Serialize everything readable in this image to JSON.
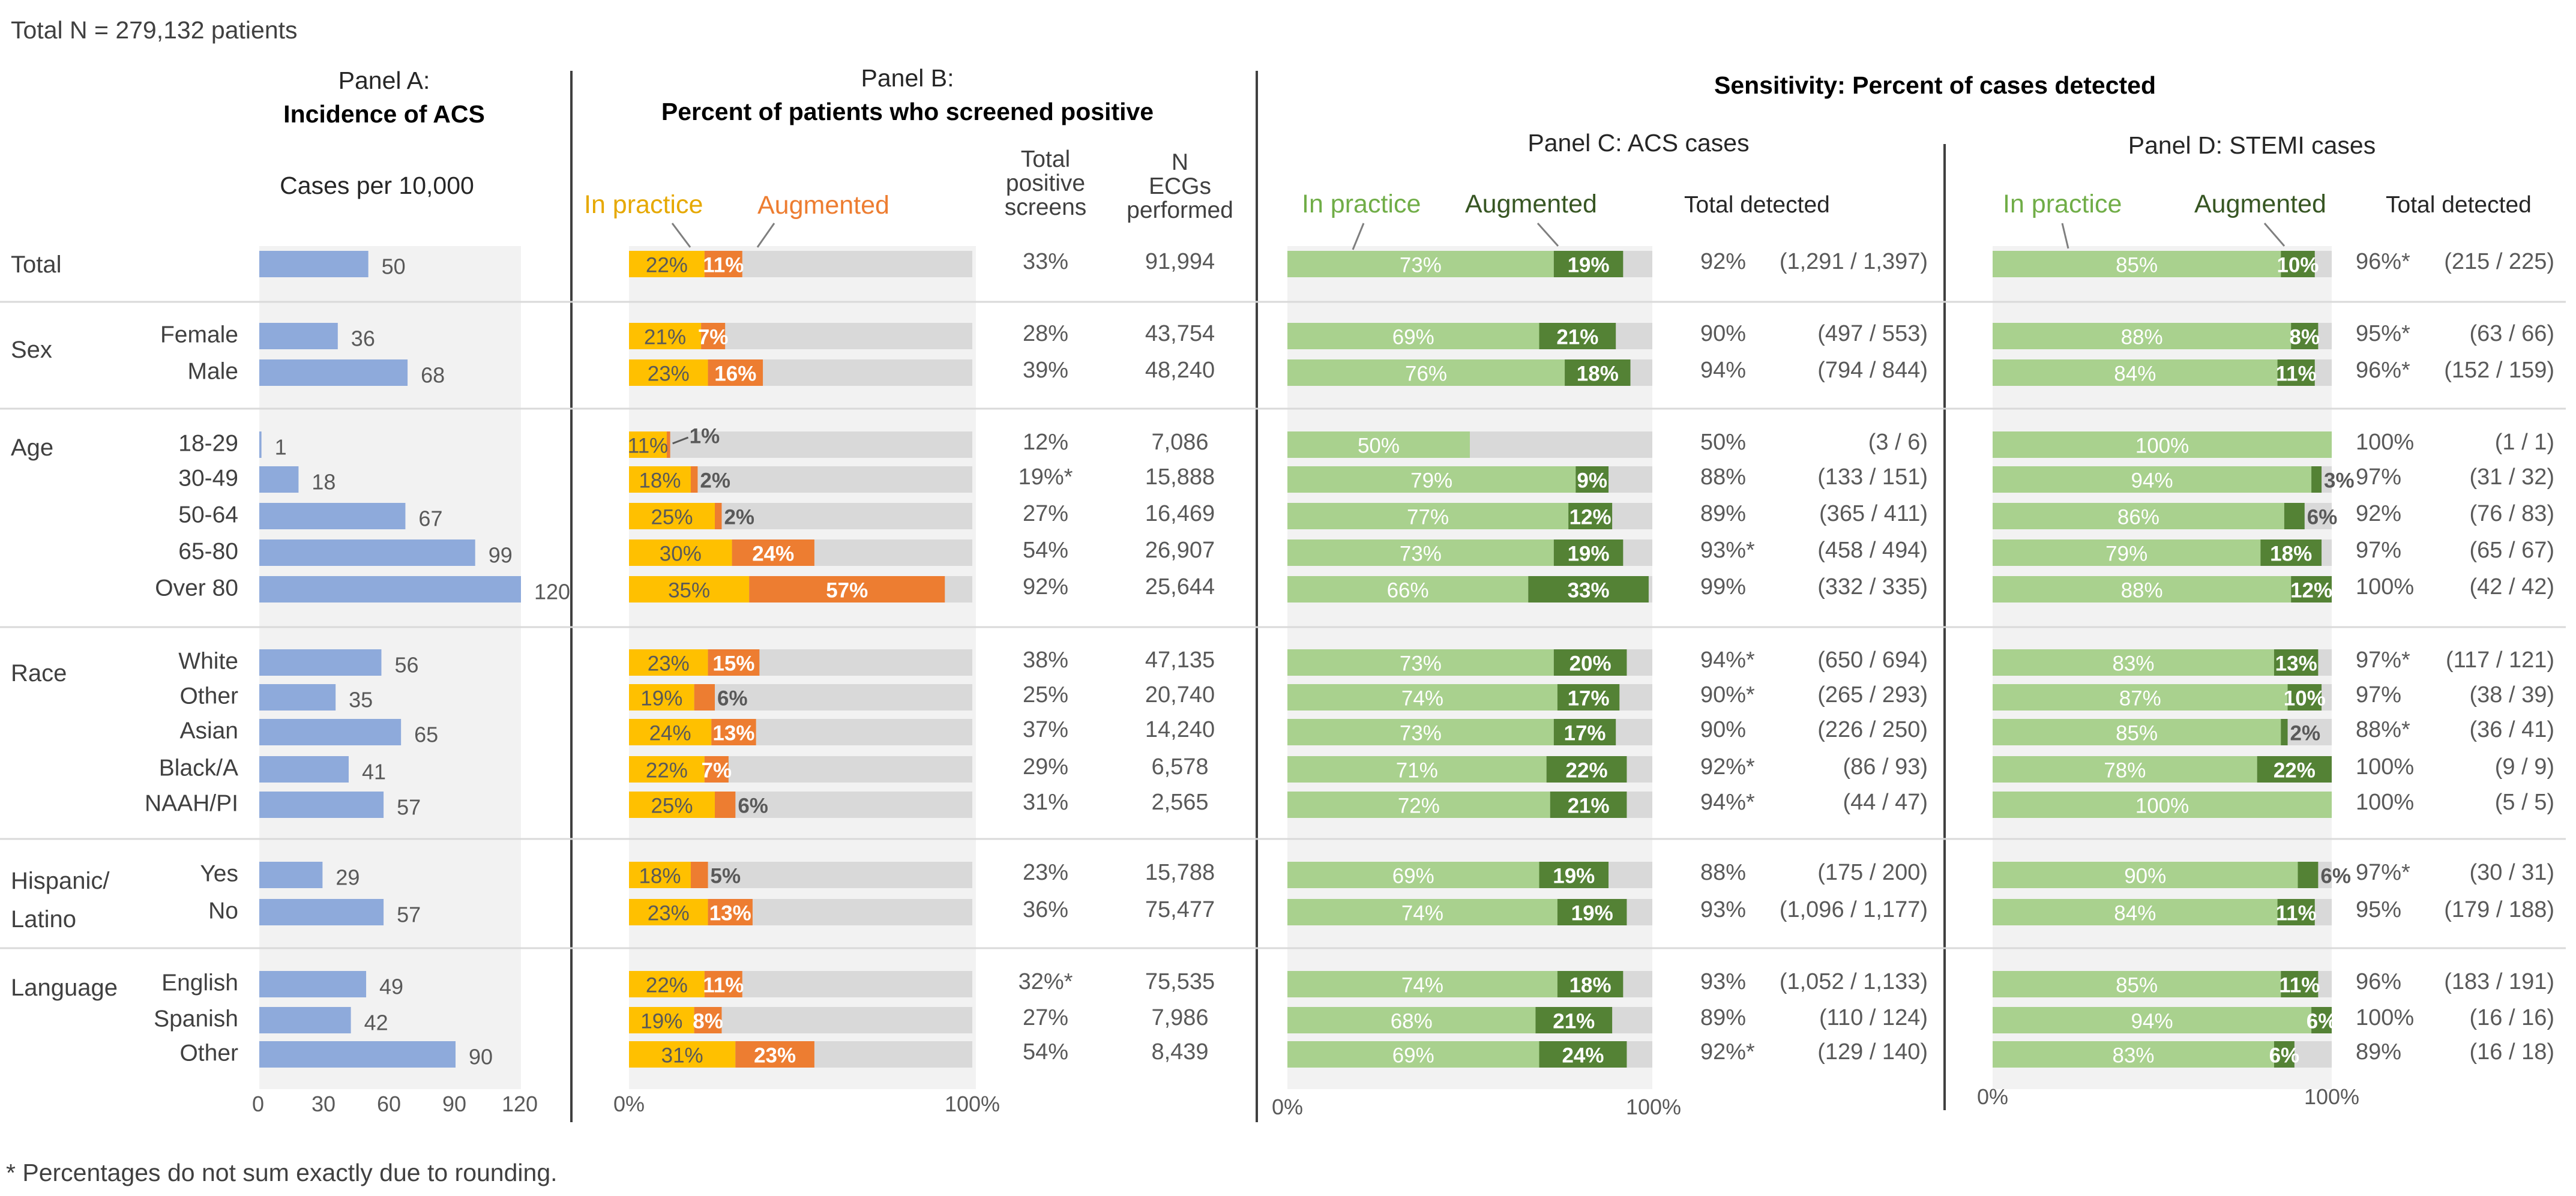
{
  "header": {
    "total_n": "Total N = 279,132 patients",
    "footnote": "* Percentages do not sum exactly due to rounding."
  },
  "panels": {
    "a_line1": "Panel A:",
    "a_line2": "Incidence of ACS",
    "a_sub": "Cases per 10,000",
    "b_line1": "Panel B:",
    "b_line2": "Percent of patients who screened positive",
    "b_col1": [
      "Total",
      "positive",
      "screens"
    ],
    "b_col2": [
      "N",
      "ECGs",
      "performed"
    ],
    "sens_title": "Sensitivity: Percent of cases detected",
    "c_title": "Panel C: ACS cases",
    "d_title": "Panel D: STEMI cases",
    "legend_practice": "In practice",
    "legend_augmented": "Augmented",
    "total_detected": "Total detected"
  },
  "axes": {
    "a_ticks": [
      "0",
      "30",
      "60",
      "90",
      "120"
    ],
    "pct_left": "0%",
    "pct_right": "100%"
  },
  "colors": {
    "incidence": "#8eaadb",
    "practice_b": "#ffc000",
    "augmented_b": "#ed7d31",
    "practice_cd": "#a9d18e",
    "augmented_cd": "#548235",
    "remainder": "#d9d9d9",
    "panel_bg": "#f2f2f2"
  },
  "chart_data": {
    "type": "bar",
    "title": "Sensitivity: Percent of cases detected",
    "panels": {
      "A": {
        "title": "Incidence of ACS",
        "xlabel": "Cases per 10,000",
        "xlim": [
          0,
          120
        ]
      },
      "B": {
        "title": "Percent of patients who screened positive",
        "series": [
          "In practice",
          "Augmented"
        ],
        "xlim": [
          0,
          100
        ]
      },
      "C": {
        "title": "Panel C: ACS cases",
        "series": [
          "In practice",
          "Augmented"
        ],
        "xlim": [
          0,
          100
        ]
      },
      "D": {
        "title": "Panel D: STEMI cases",
        "series": [
          "In practice",
          "Augmented"
        ],
        "xlim": [
          0,
          100
        ]
      }
    },
    "groups": [
      {
        "name": "Total",
        "rows": [
          {
            "label": "",
            "inc": 50,
            "b": [
              22,
              11
            ],
            "b_lab": [
              "22%",
              "11%"
            ],
            "b_out": "",
            "b_total": "33%",
            "n_ecg": "91,994",
            "c": [
              73,
              19
            ],
            "c_lab": [
              "73%",
              "19%"
            ],
            "c_out": "",
            "c_pct": "92%",
            "c_frac": "(1,291 / 1,397)",
            "d": [
              85,
              10
            ],
            "d_lab": [
              "85%",
              "10%"
            ],
            "d_out": "",
            "d_pct": "96%*",
            "d_frac": "(215 / 225)"
          }
        ]
      },
      {
        "name": "Sex",
        "rows": [
          {
            "label": "Female",
            "inc": 36,
            "b": [
              21,
              7
            ],
            "b_lab": [
              "21%",
              "7%"
            ],
            "b_out": "",
            "b_total": "28%",
            "n_ecg": "43,754",
            "c": [
              69,
              21
            ],
            "c_lab": [
              "69%",
              "21%"
            ],
            "c_out": "",
            "c_pct": "90%",
            "c_frac": "(497 / 553)",
            "d": [
              88,
              8
            ],
            "d_lab": [
              "88%",
              "8%"
            ],
            "d_out": "",
            "d_pct": "95%*",
            "d_frac": "(63 / 66)"
          },
          {
            "label": "Male",
            "inc": 68,
            "b": [
              23,
              16
            ],
            "b_lab": [
              "23%",
              "16%"
            ],
            "b_out": "",
            "b_total": "39%",
            "n_ecg": "48,240",
            "c": [
              76,
              18
            ],
            "c_lab": [
              "76%",
              "18%"
            ],
            "c_out": "",
            "c_pct": "94%",
            "c_frac": "(794 / 844)",
            "d": [
              84,
              11
            ],
            "d_lab": [
              "84%",
              "11%"
            ],
            "d_out": "",
            "d_pct": "96%*",
            "d_frac": "(152 / 159)"
          }
        ]
      },
      {
        "name": "Age",
        "rows": [
          {
            "label": "18-29",
            "inc": 1,
            "b": [
              11,
              1
            ],
            "b_lab": [
              "11%",
              ""
            ],
            "b_out": "1%",
            "b_total": "12%",
            "n_ecg": "7,086",
            "c": [
              50,
              0
            ],
            "c_lab": [
              "50%",
              ""
            ],
            "c_out": "",
            "c_pct": "50%",
            "c_frac": "(3 / 6)",
            "d": [
              100,
              0
            ],
            "d_lab": [
              "100%",
              ""
            ],
            "d_out": "",
            "d_pct": "100%",
            "d_frac": "(1 / 1)"
          },
          {
            "label": "30-49",
            "inc": 18,
            "b": [
              18,
              2
            ],
            "b_lab": [
              "18%",
              ""
            ],
            "b_out": "2%",
            "b_total": "19%*",
            "n_ecg": "15,888",
            "c": [
              79,
              9
            ],
            "c_lab": [
              "79%",
              "9%"
            ],
            "c_out": "",
            "c_pct": "88%",
            "c_frac": "(133 / 151)",
            "d": [
              94,
              3
            ],
            "d_lab": [
              "94%",
              ""
            ],
            "d_out": "3%",
            "d_pct": "97%",
            "d_frac": "(31 / 32)"
          },
          {
            "label": "50-64",
            "inc": 67,
            "b": [
              25,
              2
            ],
            "b_lab": [
              "25%",
              ""
            ],
            "b_out": "2%",
            "b_total": "27%",
            "n_ecg": "16,469",
            "c": [
              77,
              12
            ],
            "c_lab": [
              "77%",
              "12%"
            ],
            "c_out": "",
            "c_pct": "89%",
            "c_frac": "(365 / 411)",
            "d": [
              86,
              6
            ],
            "d_lab": [
              "86%",
              ""
            ],
            "d_out": "6%",
            "d_pct": "92%",
            "d_frac": "(76 / 83)"
          },
          {
            "label": "65-80",
            "inc": 99,
            "b": [
              30,
              24
            ],
            "b_lab": [
              "30%",
              "24%"
            ],
            "b_out": "",
            "b_total": "54%",
            "n_ecg": "26,907",
            "c": [
              73,
              19
            ],
            "c_lab": [
              "73%",
              "19%"
            ],
            "c_out": "",
            "c_pct": "93%*",
            "c_frac": "(458 / 494)",
            "d": [
              79,
              18
            ],
            "d_lab": [
              "79%",
              "18%"
            ],
            "d_out": "",
            "d_pct": "97%",
            "d_frac": "(65 / 67)"
          },
          {
            "label": "Over 80",
            "inc": 120,
            "b": [
              35,
              57
            ],
            "b_lab": [
              "35%",
              "57%"
            ],
            "b_out": "",
            "b_total": "92%",
            "n_ecg": "25,644",
            "c": [
              66,
              33
            ],
            "c_lab": [
              "66%",
              "33%"
            ],
            "c_out": "",
            "c_pct": "99%",
            "c_frac": "(332 / 335)",
            "d": [
              88,
              12
            ],
            "d_lab": [
              "88%",
              "12%"
            ],
            "d_out": "",
            "d_pct": "100%",
            "d_frac": "(42 / 42)"
          }
        ]
      },
      {
        "name": "Race",
        "rows": [
          {
            "label": "White",
            "inc": 56,
            "b": [
              23,
              15
            ],
            "b_lab": [
              "23%",
              "15%"
            ],
            "b_out": "",
            "b_total": "38%",
            "n_ecg": "47,135",
            "c": [
              73,
              20
            ],
            "c_lab": [
              "73%",
              "20%"
            ],
            "c_out": "",
            "c_pct": "94%*",
            "c_frac": "(650 / 694)",
            "d": [
              83,
              13
            ],
            "d_lab": [
              "83%",
              "13%"
            ],
            "d_out": "",
            "d_pct": "97%*",
            "d_frac": "(117 / 121)"
          },
          {
            "label": "Other",
            "inc": 35,
            "b": [
              19,
              6
            ],
            "b_lab": [
              "19%",
              ""
            ],
            "b_out": "6%",
            "b_total": "25%",
            "n_ecg": "20,740",
            "c": [
              74,
              17
            ],
            "c_lab": [
              "74%",
              "17%"
            ],
            "c_out": "",
            "c_pct": "90%*",
            "c_frac": "(265 / 293)",
            "d": [
              87,
              10
            ],
            "d_lab": [
              "87%",
              "10%"
            ],
            "d_out": "",
            "d_pct": "97%",
            "d_frac": "(38 / 39)"
          },
          {
            "label": "Asian",
            "inc": 65,
            "b": [
              24,
              13
            ],
            "b_lab": [
              "24%",
              "13%"
            ],
            "b_out": "",
            "b_total": "37%",
            "n_ecg": "14,240",
            "c": [
              73,
              17
            ],
            "c_lab": [
              "73%",
              "17%"
            ],
            "c_out": "",
            "c_pct": "90%",
            "c_frac": "(226 / 250)",
            "d": [
              85,
              2
            ],
            "d_lab": [
              "85%",
              ""
            ],
            "d_out": "2%",
            "d_pct": "88%*",
            "d_frac": "(36 / 41)"
          },
          {
            "label": "Black/A",
            "inc": 41,
            "b": [
              22,
              7
            ],
            "b_lab": [
              "22%",
              "7%"
            ],
            "b_out": "",
            "b_total": "29%",
            "n_ecg": "6,578",
            "c": [
              71,
              22
            ],
            "c_lab": [
              "71%",
              "22%"
            ],
            "c_out": "",
            "c_pct": "92%*",
            "c_frac": "(86 / 93)",
            "d": [
              78,
              22
            ],
            "d_lab": [
              "78%",
              "22%"
            ],
            "d_out": "",
            "d_pct": "100%",
            "d_frac": "(9 / 9)"
          },
          {
            "label": "NAAH/PI",
            "inc": 57,
            "b": [
              25,
              6
            ],
            "b_lab": [
              "25%",
              ""
            ],
            "b_out": "6%",
            "b_total": "31%",
            "n_ecg": "2,565",
            "c": [
              72,
              21
            ],
            "c_lab": [
              "72%",
              "21%"
            ],
            "c_out": "",
            "c_pct": "94%*",
            "c_frac": "(44 / 47)",
            "d": [
              100,
              0
            ],
            "d_lab": [
              "100%",
              ""
            ],
            "d_out": "",
            "d_pct": "100%",
            "d_frac": "(5 / 5)"
          }
        ]
      },
      {
        "name": "Hispanic/ Latino",
        "rows": [
          {
            "label": "Yes",
            "inc": 29,
            "b": [
              18,
              5
            ],
            "b_lab": [
              "18%",
              ""
            ],
            "b_out": "5%",
            "b_total": "23%",
            "n_ecg": "15,788",
            "c": [
              69,
              19
            ],
            "c_lab": [
              "69%",
              "19%"
            ],
            "c_out": "",
            "c_pct": "88%",
            "c_frac": "(175 / 200)",
            "d": [
              90,
              6
            ],
            "d_lab": [
              "90%",
              ""
            ],
            "d_out": "6%",
            "d_pct": "97%*",
            "d_frac": "(30 / 31)"
          },
          {
            "label": "No",
            "inc": 57,
            "b": [
              23,
              13
            ],
            "b_lab": [
              "23%",
              "13%"
            ],
            "b_out": "",
            "b_total": "36%",
            "n_ecg": "75,477",
            "c": [
              74,
              19
            ],
            "c_lab": [
              "74%",
              "19%"
            ],
            "c_out": "",
            "c_pct": "93%",
            "c_frac": "(1,096 / 1,177)",
            "d": [
              84,
              11
            ],
            "d_lab": [
              "84%",
              "11%"
            ],
            "d_out": "",
            "d_pct": "95%",
            "d_frac": "(179 / 188)"
          }
        ]
      },
      {
        "name": "Language",
        "rows": [
          {
            "label": "English",
            "inc": 49,
            "b": [
              22,
              11
            ],
            "b_lab": [
              "22%",
              "11%"
            ],
            "b_out": "",
            "b_total": "32%*",
            "n_ecg": "75,535",
            "c": [
              74,
              18
            ],
            "c_lab": [
              "74%",
              "18%"
            ],
            "c_out": "",
            "c_pct": "93%",
            "c_frac": "(1,052 / 1,133)",
            "d": [
              85,
              11
            ],
            "d_lab": [
              "85%",
              "11%"
            ],
            "d_out": "",
            "d_pct": "96%",
            "d_frac": "(183 / 191)"
          },
          {
            "label": "Spanish",
            "inc": 42,
            "b": [
              19,
              8
            ],
            "b_lab": [
              "19%",
              "8%"
            ],
            "b_out": "",
            "b_total": "27%",
            "n_ecg": "7,986",
            "c": [
              68,
              21
            ],
            "c_lab": [
              "68%",
              "21%"
            ],
            "c_out": "",
            "c_pct": "89%",
            "c_frac": "(110 / 124)",
            "d": [
              94,
              6
            ],
            "d_lab": [
              "94%",
              "6%"
            ],
            "d_out": "",
            "d_pct": "100%",
            "d_frac": "(16 / 16)"
          },
          {
            "label": "Other",
            "inc": 90,
            "b": [
              31,
              23
            ],
            "b_lab": [
              "31%",
              "23%"
            ],
            "b_out": "",
            "b_total": "54%",
            "n_ecg": "8,439",
            "c": [
              69,
              24
            ],
            "c_lab": [
              "69%",
              "24%"
            ],
            "c_out": "",
            "c_pct": "92%*",
            "c_frac": "(129 / 140)",
            "d": [
              83,
              6
            ],
            "d_lab": [
              "83%",
              "6%"
            ],
            "d_out": "",
            "d_pct": "89%",
            "d_frac": "(16 / 18)"
          }
        ]
      }
    ]
  }
}
